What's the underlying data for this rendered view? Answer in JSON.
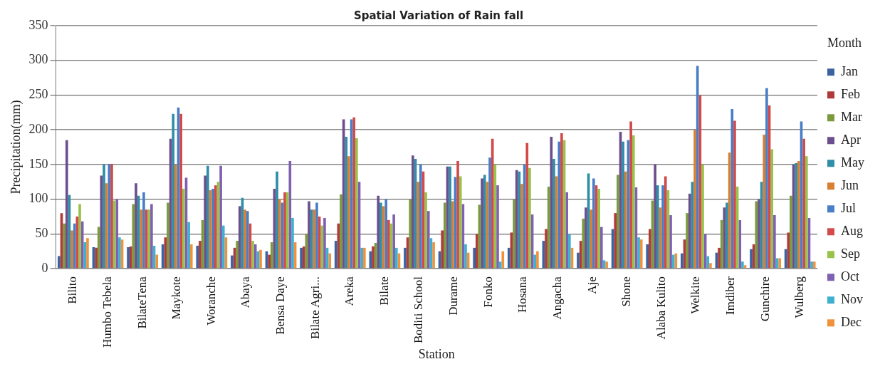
{
  "chart_data": {
    "type": "bar",
    "title": "Spatial Variation of Rain fall",
    "xlabel": "Station",
    "ylabel": "Precipitation(mm)",
    "legend_title": "Month",
    "legend": "right",
    "grid": "y",
    "categories": [
      "Bilito",
      "Humbo Tebela",
      "BilateTena",
      "Maykote",
      "Woranche",
      "Abaya",
      "Bensa Daye",
      "Bilate Agri...",
      "Areka",
      "Bilate",
      "Boditi School",
      "Durame",
      "Fonko",
      "Hosana",
      "Angacha",
      "Aje",
      "Shone",
      "Alaba Kulito",
      "Welkite",
      "Imdiber",
      "Gunchire",
      "Wulberg"
    ],
    "ylim": [
      0,
      350
    ],
    "yticks": [
      0,
      50,
      100,
      150,
      200,
      250,
      300,
      350
    ],
    "series": [
      {
        "name": "Jan",
        "color": "#3b63a0",
        "values": [
          18,
          31,
          31,
          35,
          33,
          19,
          25,
          30,
          40,
          25,
          30,
          25,
          30,
          30,
          40,
          23,
          57,
          35,
          22,
          23,
          28,
          28
        ]
      },
      {
        "name": "Feb",
        "color": "#b03a3a",
        "values": [
          80,
          30,
          32,
          45,
          40,
          30,
          20,
          32,
          65,
          32,
          45,
          55,
          50,
          52,
          57,
          40,
          80,
          57,
          42,
          30,
          35,
          52
        ]
      },
      {
        "name": "Mar",
        "color": "#7a9a3c",
        "values": [
          65,
          60,
          93,
          95,
          70,
          40,
          38,
          50,
          107,
          37,
          100,
          95,
          92,
          100,
          118,
          72,
          135,
          98,
          80,
          70,
          97,
          105
        ]
      },
      {
        "name": "Apr",
        "color": "#6a4f8c",
        "values": [
          185,
          134,
          123,
          187,
          134,
          90,
          115,
          97,
          215,
          105,
          163,
          147,
          130,
          142,
          190,
          88,
          197,
          150,
          108,
          88,
          100,
          150
        ]
      },
      {
        "name": "May",
        "color": "#2f8ea8",
        "values": [
          106,
          150,
          105,
          223,
          148,
          102,
          140,
          85,
          190,
          95,
          158,
          147,
          135,
          140,
          158,
          137,
          183,
          120,
          125,
          95,
          125,
          152
        ]
      },
      {
        "name": "Jun",
        "color": "#d87f32",
        "values": [
          55,
          123,
          85,
          150,
          113,
          85,
          100,
          85,
          162,
          90,
          125,
          97,
          125,
          122,
          133,
          85,
          140,
          88,
          200,
          167,
          193,
          155
        ]
      },
      {
        "name": "Jul",
        "color": "#4a7fc8",
        "values": [
          65,
          151,
          110,
          232,
          115,
          83,
          95,
          95,
          215,
          100,
          150,
          132,
          160,
          150,
          183,
          130,
          185,
          120,
          292,
          230,
          260,
          212
        ]
      },
      {
        "name": "Aug",
        "color": "#d24a4a",
        "values": [
          75,
          151,
          85,
          223,
          120,
          65,
          110,
          75,
          218,
          70,
          140,
          155,
          187,
          181,
          195,
          120,
          212,
          133,
          250,
          213,
          235,
          187
        ]
      },
      {
        "name": "Sep",
        "color": "#98c24a",
        "values": [
          93,
          98,
          85,
          115,
          125,
          40,
          110,
          62,
          188,
          65,
          110,
          133,
          150,
          145,
          185,
          115,
          192,
          113,
          150,
          118,
          172,
          162
        ]
      },
      {
        "name": "Oct",
        "color": "#8060b0",
        "values": [
          68,
          100,
          93,
          131,
          148,
          35,
          155,
          73,
          125,
          78,
          83,
          93,
          120,
          78,
          110,
          60,
          117,
          77,
          50,
          70,
          77,
          73
        ]
      },
      {
        "name": "Nov",
        "color": "#40b0d0",
        "values": [
          38,
          45,
          33,
          67,
          62,
          25,
          73,
          30,
          30,
          30,
          44,
          35,
          10,
          20,
          50,
          12,
          45,
          20,
          18,
          10,
          15,
          10
        ]
      },
      {
        "name": "Dec",
        "color": "#f0923a",
        "values": [
          44,
          42,
          20,
          35,
          45,
          27,
          38,
          22,
          30,
          22,
          38,
          23,
          25,
          25,
          30,
          10,
          42,
          22,
          8,
          5,
          15,
          10
        ]
      }
    ]
  }
}
